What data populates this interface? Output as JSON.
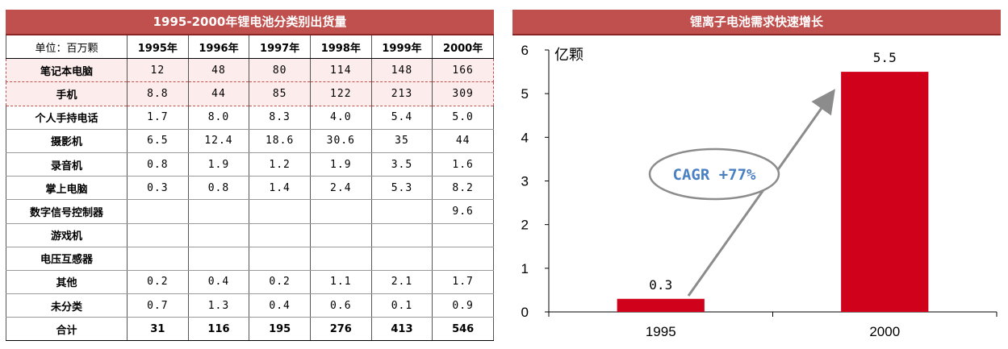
{
  "table": {
    "title": "1995-2000年锂电池分类别出货量",
    "unit_label": "单位：百万颗",
    "years": [
      "1995年",
      "1996年",
      "1997年",
      "1998年",
      "1999年",
      "2000年"
    ],
    "rows": [
      {
        "label": "笔记本电脑",
        "values": [
          "12",
          "48",
          "80",
          "114",
          "148",
          "166"
        ],
        "highlight": true
      },
      {
        "label": "手机",
        "values": [
          "8.8",
          "44",
          "85",
          "122",
          "213",
          "309"
        ],
        "highlight": true
      },
      {
        "label": "个人手持电话",
        "values": [
          "1.7",
          "8.0",
          "8.3",
          "4.0",
          "5.4",
          "5.0"
        ]
      },
      {
        "label": "摄影机",
        "values": [
          "6.5",
          "12.4",
          "18.6",
          "30.6",
          "35",
          "44"
        ]
      },
      {
        "label": "录音机",
        "values": [
          "0.8",
          "1.9",
          "1.2",
          "1.9",
          "3.5",
          "1.6"
        ]
      },
      {
        "label": "掌上电脑",
        "values": [
          "0.3",
          "0.8",
          "1.4",
          "2.4",
          "5.3",
          "8.2"
        ]
      },
      {
        "label": "数字信号控制器",
        "values": [
          "",
          "",
          "",
          "",
          "",
          "9.6"
        ]
      },
      {
        "label": "游戏机",
        "values": [
          "",
          "",
          "",
          "",
          "",
          ""
        ]
      },
      {
        "label": "电压互感器",
        "values": [
          "",
          "",
          "",
          "",
          "",
          ""
        ]
      },
      {
        "label": "其他",
        "values": [
          "0.2",
          "0.4",
          "0.2",
          "1.1",
          "2.1",
          "1.7"
        ]
      },
      {
        "label": "未分类",
        "values": [
          "0.7",
          "1.3",
          "0.4",
          "0.6",
          "0.1",
          "0.9"
        ]
      }
    ],
    "total": {
      "label": "合计",
      "values": [
        "31",
        "116",
        "195",
        "276",
        "413",
        "546"
      ]
    }
  },
  "chart_data": {
    "type": "bar",
    "title": "锂离子电池需求快速增长",
    "categories": [
      "1995",
      "2000"
    ],
    "values": [
      0.3,
      5.5
    ],
    "value_labels": [
      "0.3",
      "5.5"
    ],
    "ylabel": "亿颗",
    "ylim": [
      0,
      6
    ],
    "yticks": [
      0,
      1,
      2,
      3,
      4,
      5,
      6
    ],
    "bar_color": "#d0021b",
    "annotation": "CAGR +77%",
    "annotation_color": "#4a7fc1",
    "grid": false
  },
  "colors": {
    "panel_header": "#c0504d",
    "highlight_fill": "#fdecec",
    "bar": "#d0021b"
  }
}
